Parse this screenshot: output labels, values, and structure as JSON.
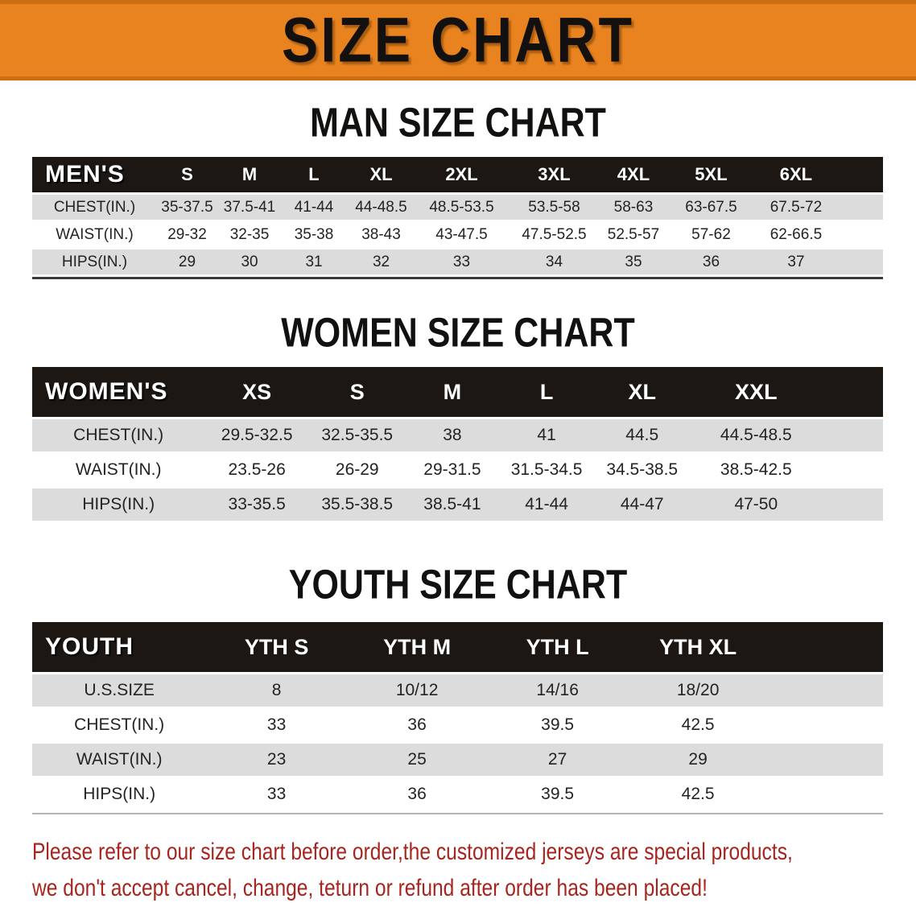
{
  "banner": {
    "title": "SIZE CHART"
  },
  "sections": [
    {
      "title": "MAN SIZE CHART",
      "header_label": "MEN'S",
      "columns": [
        "S",
        "M",
        "L",
        "XL",
        "2XL",
        "3XL",
        "4XL",
        "5XL",
        "6XL"
      ],
      "rows": [
        {
          "label": "CHEST(IN.)",
          "values": [
            "35-37.5",
            "37.5-41",
            "41-44",
            "44-48.5",
            "48.5-53.5",
            "53.5-58",
            "58-63",
            "63-67.5",
            "67.5-72"
          ]
        },
        {
          "label": "WAIST(IN.)",
          "values": [
            "29-32",
            "32-35",
            "35-38",
            "38-43",
            "43-47.5",
            "47.5-52.5",
            "52.5-57",
            "57-62",
            "62-66.5"
          ]
        },
        {
          "label": "HIPS(IN.)",
          "values": [
            "29",
            "30",
            "31",
            "32",
            "33",
            "34",
            "35",
            "36",
            "37"
          ]
        }
      ]
    },
    {
      "title": "WOMEN SIZE CHART",
      "header_label": "WOMEN'S",
      "columns": [
        "XS",
        "S",
        "M",
        "L",
        "XL",
        "XXL"
      ],
      "rows": [
        {
          "label": "CHEST(IN.)",
          "values": [
            "29.5-32.5",
            "32.5-35.5",
            "38",
            "41",
            "44.5",
            "44.5-48.5"
          ]
        },
        {
          "label": "WAIST(IN.)",
          "values": [
            "23.5-26",
            "26-29",
            "29-31.5",
            "31.5-34.5",
            "34.5-38.5",
            "38.5-42.5"
          ]
        },
        {
          "label": "HIPS(IN.)",
          "values": [
            "33-35.5",
            "35.5-38.5",
            "38.5-41",
            "41-44",
            "44-47",
            "47-50"
          ]
        }
      ]
    },
    {
      "title": "YOUTH SIZE CHART",
      "header_label": "YOUTH",
      "columns": [
        "YTH S",
        "YTH M",
        "YTH L",
        "YTH XL"
      ],
      "rows": [
        {
          "label": "U.S.SIZE",
          "values": [
            "8",
            "10/12",
            "14/16",
            "18/20"
          ]
        },
        {
          "label": "CHEST(IN.)",
          "values": [
            "33",
            "36",
            "39.5",
            "42.5"
          ]
        },
        {
          "label": "WAIST(IN.)",
          "values": [
            "23",
            "25",
            "27",
            "29"
          ]
        },
        {
          "label": "HIPS(IN.)",
          "values": [
            "33",
            "36",
            "39.5",
            "42.5"
          ]
        }
      ]
    }
  ],
  "footer": {
    "line1": "Please refer to our size chart before order,the customized jerseys are special products,",
    "line2": "we don't accept cancel, change, teturn or refund after order has been placed!"
  },
  "colors": {
    "banner_bg": "#E8831F",
    "header_bar": "#1C1713",
    "row_gray": "#DCDCDC",
    "row_white": "#FFFFFF",
    "footer_red": "#A6261F",
    "title_ink": "#121110"
  }
}
